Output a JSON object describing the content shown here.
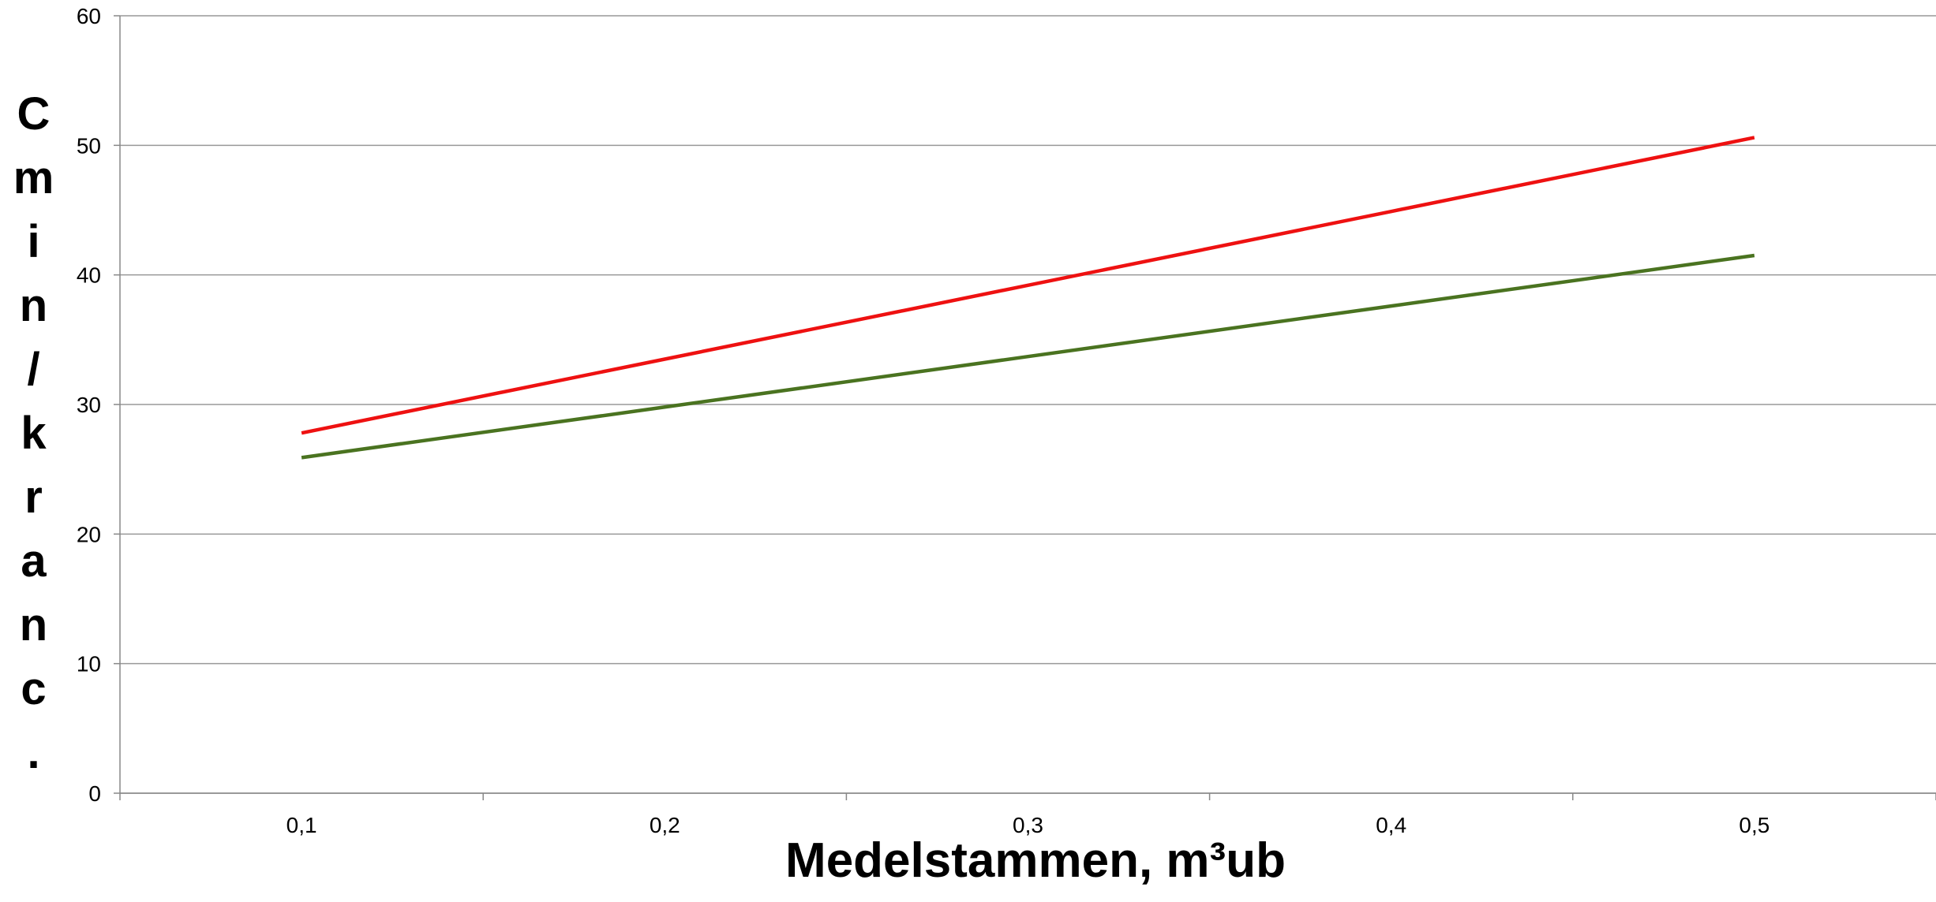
{
  "chart_data": {
    "type": "line",
    "y_label": "Cmin/kranc.",
    "x_label": "Medelstammen, m³ub",
    "categories": [
      "0,1",
      "0,2",
      "0,3",
      "0,4",
      "0,5"
    ],
    "series": [
      {
        "color": "#ee1111",
        "values": [
          27.8,
          33.5,
          39.2,
          44.9,
          50.6
        ]
      },
      {
        "color": "#4a7320",
        "values": [
          25.9,
          29.8,
          33.7,
          37.6,
          41.5
        ]
      }
    ],
    "ylim": [
      0,
      60
    ],
    "yticks": [
      0,
      10,
      20,
      30,
      40,
      50,
      60
    ],
    "grid": true
  }
}
